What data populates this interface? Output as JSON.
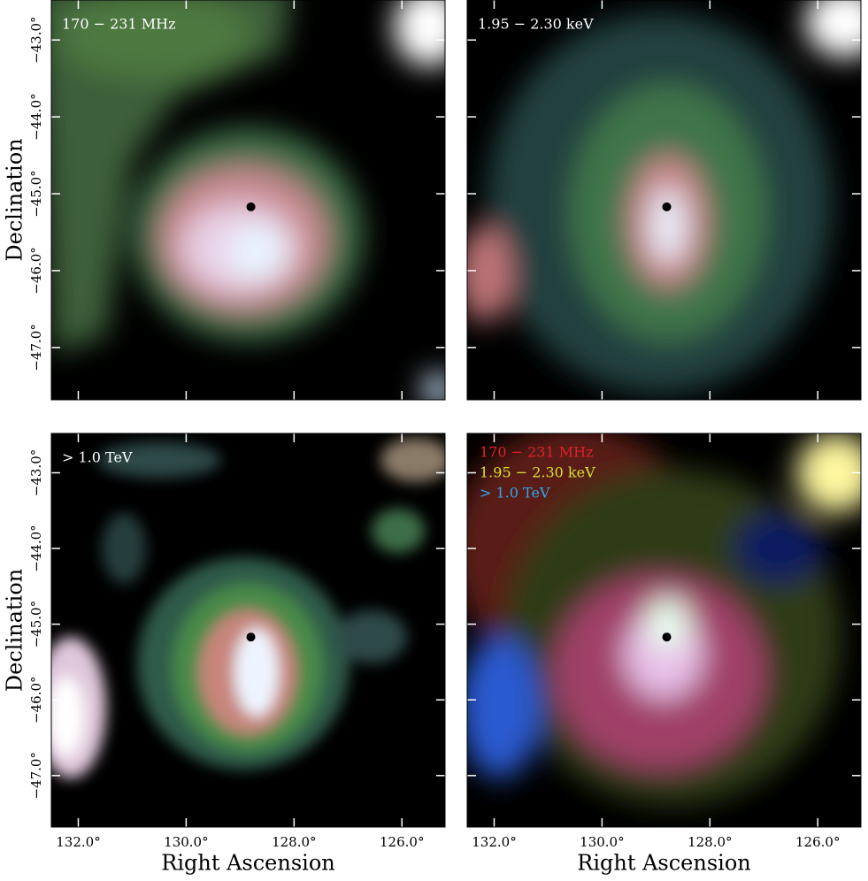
{
  "chart_data": [
    {
      "type": "image",
      "title": "170 − 231 MHz",
      "title_color": "#ffffff",
      "xlim": [
        132.5,
        125.2
      ],
      "ylim": [
        -42.48,
        -47.68
      ],
      "xticks": [
        132,
        130,
        128,
        126
      ],
      "yticks": [
        {
          "value": -43,
          "label": "−43.0°"
        },
        {
          "value": -44,
          "label": "−44.0°"
        },
        {
          "value": -45,
          "label": "−45.0°"
        },
        {
          "value": -46,
          "label": "−46.0°"
        },
        {
          "value": -47,
          "label": "−47.0°"
        }
      ],
      "ylabel": "Declination",
      "marker": {
        "x": 128.8,
        "y": -45.17
      }
    },
    {
      "type": "image",
      "title": "1.95 − 2.30 keV",
      "title_color": "#ffffff",
      "xlim": [
        132.5,
        125.2
      ],
      "ylim": [
        -42.48,
        -47.68
      ],
      "xticks": [
        132,
        130,
        128,
        126
      ],
      "yticks": [
        -43,
        -44,
        -45,
        -46,
        -47
      ],
      "marker": {
        "x": 128.8,
        "y": -45.17
      }
    },
    {
      "type": "image",
      "title": "> 1.0 TeV",
      "title_color": "#ffffff",
      "xlim": [
        132.5,
        125.2
      ],
      "ylim": [
        -42.48,
        -47.68
      ],
      "xticks": [
        {
          "value": 132,
          "label": "132.0°"
        },
        {
          "value": 130,
          "label": "130.0°"
        },
        {
          "value": 128,
          "label": "128.0°"
        },
        {
          "value": 126,
          "label": "126.0°"
        }
      ],
      "yticks": [
        {
          "value": -43,
          "label": "−43.0°"
        },
        {
          "value": -44,
          "label": "−44.0°"
        },
        {
          "value": -45,
          "label": "−45.0°"
        },
        {
          "value": -46,
          "label": "−46.0°"
        },
        {
          "value": -47,
          "label": "−47.0°"
        }
      ],
      "xlabel": "Right Ascension",
      "ylabel": "Declination",
      "marker": {
        "x": 128.8,
        "y": -45.17
      }
    },
    {
      "type": "image",
      "legend": [
        {
          "name": "170 − 231 MHz",
          "color": "#e0202a"
        },
        {
          "name": "1.95 − 2.30 keV",
          "color": "#d8e030"
        },
        {
          "name": "> 1.0 TeV",
          "color": "#30a8f0"
        }
      ],
      "xlim": [
        132.5,
        125.2
      ],
      "ylim": [
        -42.48,
        -47.68
      ],
      "xticks": [
        {
          "value": 132,
          "label": "132.0°"
        },
        {
          "value": 130,
          "label": "130.0°"
        },
        {
          "value": 128,
          "label": "128.0°"
        },
        {
          "value": 126,
          "label": "126.0°"
        }
      ],
      "yticks": [
        -43,
        -44,
        -45,
        -46,
        -47
      ],
      "xlabel": "Right Ascension",
      "marker": {
        "x": 128.8,
        "y": -45.17
      }
    }
  ]
}
